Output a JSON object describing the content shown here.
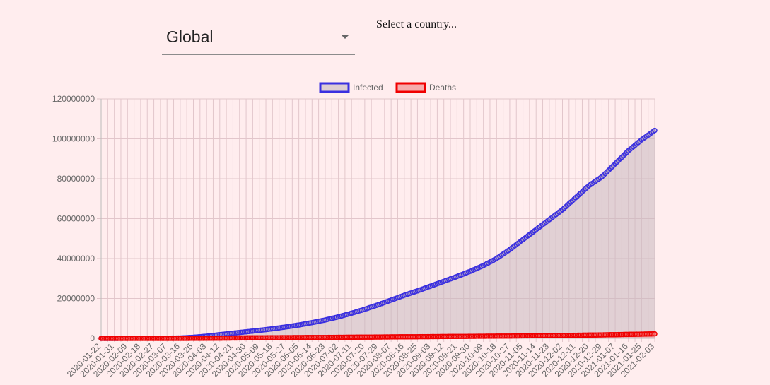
{
  "country_select": {
    "value": "Global"
  },
  "hint_text": "Select a country...",
  "colors": {
    "background": "#ffedee",
    "infected_line": "#3a2fe0",
    "infected_fill": "#c8b8bf",
    "deaths_line": "#f00000",
    "deaths_fill": "#f08080",
    "grid": "#e2c6cb"
  },
  "chart_data": {
    "type": "line",
    "title": "",
    "xlabel": "",
    "ylabel": "",
    "ylim": [
      0,
      120000000
    ],
    "yticks": [
      "0",
      "20000000",
      "40000000",
      "60000000",
      "80000000",
      "100000000",
      "120000000"
    ],
    "legend_position": "top",
    "grid": true,
    "categories": [
      "2020-01-22",
      "2020-01-31",
      "2020-02-09",
      "2020-02-18",
      "2020-02-27",
      "2020-03-07",
      "2020-03-16",
      "2020-03-25",
      "2020-04-03",
      "2020-04-12",
      "2020-04-21",
      "2020-04-30",
      "2020-05-09",
      "2020-05-18",
      "2020-05-27",
      "2020-06-05",
      "2020-06-14",
      "2020-06-23",
      "2020-07-02",
      "2020-07-11",
      "2020-07-20",
      "2020-07-29",
      "2020-08-07",
      "2020-08-16",
      "2020-08-25",
      "2020-09-03",
      "2020-09-12",
      "2020-09-21",
      "2020-09-30",
      "2020-10-09",
      "2020-10-18",
      "2020-10-27",
      "2020-11-05",
      "2020-11-14",
      "2020-11-23",
      "2020-12-02",
      "2020-12-11",
      "2020-12-20",
      "2020-12-29",
      "2021-01-07",
      "2021-01-16",
      "2021-01-25",
      "2021-02-03"
    ],
    "series": [
      {
        "name": "Infected",
        "values": [
          550,
          9800,
          40000,
          75000,
          84000,
          105000,
          180000,
          530000,
          1100000,
          1850000,
          2600000,
          3300000,
          4000000,
          4800000,
          5700000,
          6700000,
          7900000,
          9200000,
          10800000,
          12600000,
          14600000,
          16800000,
          19200000,
          21600000,
          23800000,
          26200000,
          28600000,
          31000000,
          33600000,
          36500000,
          40000000,
          44500000,
          49500000,
          54500000,
          59500000,
          64500000,
          70500000,
          76500000,
          81000000,
          87500000,
          94000000,
          99500000,
          104200000
        ]
      },
      {
        "name": "Deaths",
        "values": [
          17,
          213,
          900,
          1900,
          2800,
          3600,
          7000,
          23000,
          60000,
          115000,
          170000,
          230000,
          280000,
          320000,
          350000,
          390000,
          430000,
          470000,
          520000,
          570000,
          620000,
          670000,
          730000,
          780000,
          830000,
          870000,
          920000,
          970000,
          1020000,
          1070000,
          1120000,
          1170000,
          1250000,
          1320000,
          1390000,
          1470000,
          1560000,
          1650000,
          1750000,
          1870000,
          2000000,
          2120000,
          2270000
        ]
      }
    ]
  }
}
